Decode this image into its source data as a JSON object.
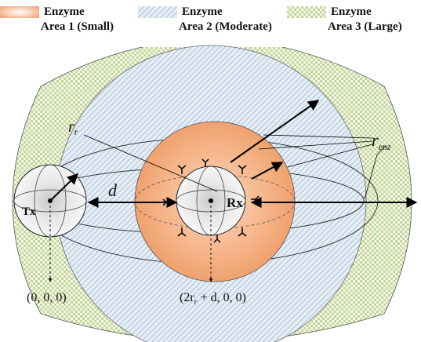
{
  "legend": [
    {
      "line1": "Enzyme",
      "line2": "Area 1 (Small)"
    },
    {
      "line1": "Enzyme",
      "line2": "Area 2 (Moderate)"
    },
    {
      "line1": "Enzyme",
      "line2": "Area 3 (Large)"
    }
  ],
  "labels": {
    "tx": "Tx",
    "rx": "Rx",
    "d": "d",
    "r_main": "r",
    "r_sub": "r",
    "renz_main": "r",
    "renz_sub": "enz",
    "origin": "(0, 0, 0)",
    "rx_coord_pre": "(2r",
    "rx_coord_sub": "r",
    "rx_coord_post": " + d, 0, 0)"
  },
  "colors": {
    "area1": "#f4ab7e",
    "area2_bg": "#e5edf5",
    "area2_hatch": "#9fb6cf",
    "area3_bg": "#f3f6ea",
    "area3_dot": "#c6d79a"
  }
}
